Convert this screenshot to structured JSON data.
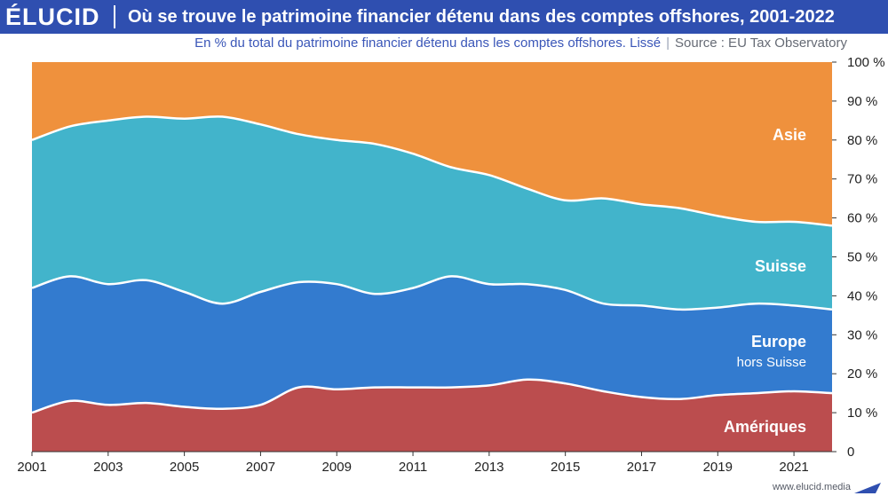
{
  "header": {
    "logo": "ÉLUCID",
    "title": "Où se trouve le patrimoine financier détenu dans des comptes offshores, 2001-2022",
    "subtitle": "En % du total du patrimoine financier détenu dans les comptes offshores. Lissé",
    "source": "Source : EU Tax Observatory"
  },
  "footer": {
    "url": "www.elucid.media"
  },
  "colors": {
    "header_bg": "#2f4fb0",
    "ameriques": "#bb4d4e",
    "europe": "#337bcf",
    "suisse": "#42b4cb",
    "asie": "#ef913d"
  },
  "chart_data": {
    "type": "area",
    "stacked": true,
    "x": [
      2001,
      2002,
      2003,
      2004,
      2005,
      2006,
      2007,
      2008,
      2009,
      2010,
      2011,
      2012,
      2013,
      2014,
      2015,
      2016,
      2017,
      2018,
      2019,
      2020,
      2021,
      2022
    ],
    "xticks": [
      "2001",
      "2003",
      "2005",
      "2007",
      "2009",
      "2011",
      "2013",
      "2015",
      "2017",
      "2019",
      "2021"
    ],
    "yticks": [
      "0",
      "10 %",
      "20 %",
      "30 %",
      "40 %",
      "50 %",
      "60 %",
      "70 %",
      "80 %",
      "90 %",
      "100 %"
    ],
    "ylim": [
      0,
      100
    ],
    "series": [
      {
        "name": "Amériques",
        "values": [
          10,
          13,
          12,
          12.5,
          11.5,
          11,
          12,
          16.5,
          16,
          16.5,
          16.5,
          16.5,
          17,
          18.5,
          17.5,
          15.5,
          14,
          13.5,
          14.5,
          15,
          15.5,
          15
        ]
      },
      {
        "name": "Europe hors Suisse",
        "values": [
          32,
          32,
          31,
          31.5,
          29.5,
          27,
          29,
          27,
          27,
          24,
          25.5,
          28.5,
          26,
          24.5,
          24,
          22.5,
          23.5,
          23,
          22.5,
          23,
          22,
          21.5
        ]
      },
      {
        "name": "Suisse",
        "values": [
          38,
          38.5,
          42,
          42,
          44.5,
          48,
          43,
          38,
          37,
          38.5,
          34.5,
          28,
          28,
          24.5,
          23,
          27,
          26,
          26,
          23.5,
          21,
          21.5,
          21.5
        ]
      },
      {
        "name": "Asie",
        "values": [
          20,
          16.5,
          15,
          14,
          14.5,
          14,
          16,
          18.5,
          20,
          21,
          23.5,
          27,
          29,
          32.5,
          35.5,
          35,
          36.5,
          37.5,
          39.5,
          41,
          41,
          42
        ]
      }
    ],
    "series_labels": [
      {
        "line1": "Amériques",
        "line2": ""
      },
      {
        "line1": "Europe",
        "line2": "hors Suisse"
      },
      {
        "line1": "Suisse",
        "line2": ""
      },
      {
        "line1": "Asie",
        "line2": ""
      }
    ]
  }
}
